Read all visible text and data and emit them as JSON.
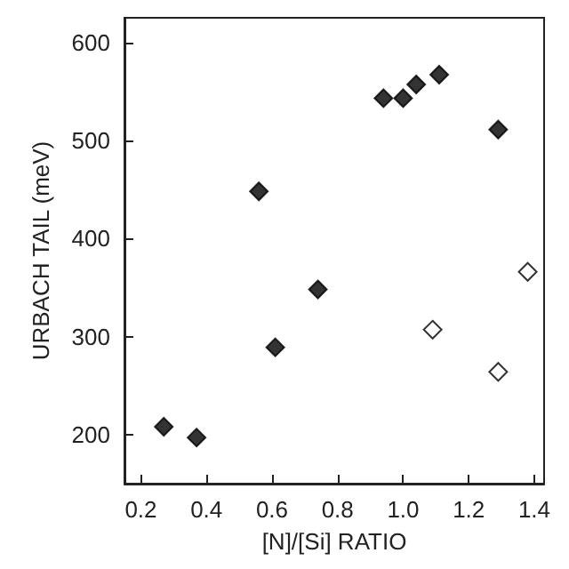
{
  "chart_data": {
    "type": "scatter",
    "xlabel": "[N]/[Si] RATIO",
    "ylabel": "URBACH TAIL (meV)",
    "xlim": [
      0.15,
      1.43
    ],
    "xticks": [
      {
        "value": 0.2,
        "label": "0.2"
      },
      {
        "value": 0.4,
        "label": "0.4"
      },
      {
        "value": 0.6,
        "label": "0.6"
      },
      {
        "value": 0.8,
        "label": "0.8"
      },
      {
        "value": 1.0,
        "label": "1.0"
      },
      {
        "value": 1.2,
        "label": "1.2"
      },
      {
        "value": 1.4,
        "label": "1.4"
      }
    ],
    "ylim": [
      150,
      625
    ],
    "yticks": [
      200,
      300,
      400,
      500,
      600
    ],
    "marker": "diamond",
    "grid": false,
    "series": [
      {
        "color": "#000000",
        "x": [
          0.27,
          0.37,
          0.56,
          0.61,
          0.74,
          0.94,
          1.0,
          1.04,
          1.11,
          1.29
        ],
        "values": [
          208,
          197,
          448,
          289,
          348,
          543,
          543,
          557,
          567,
          511
        ]
      },
      {
        "color": "#ffffff",
        "x": [
          1.09,
          1.29,
          1.38
        ],
        "values": [
          307,
          264,
          366
        ]
      }
    ]
  }
}
